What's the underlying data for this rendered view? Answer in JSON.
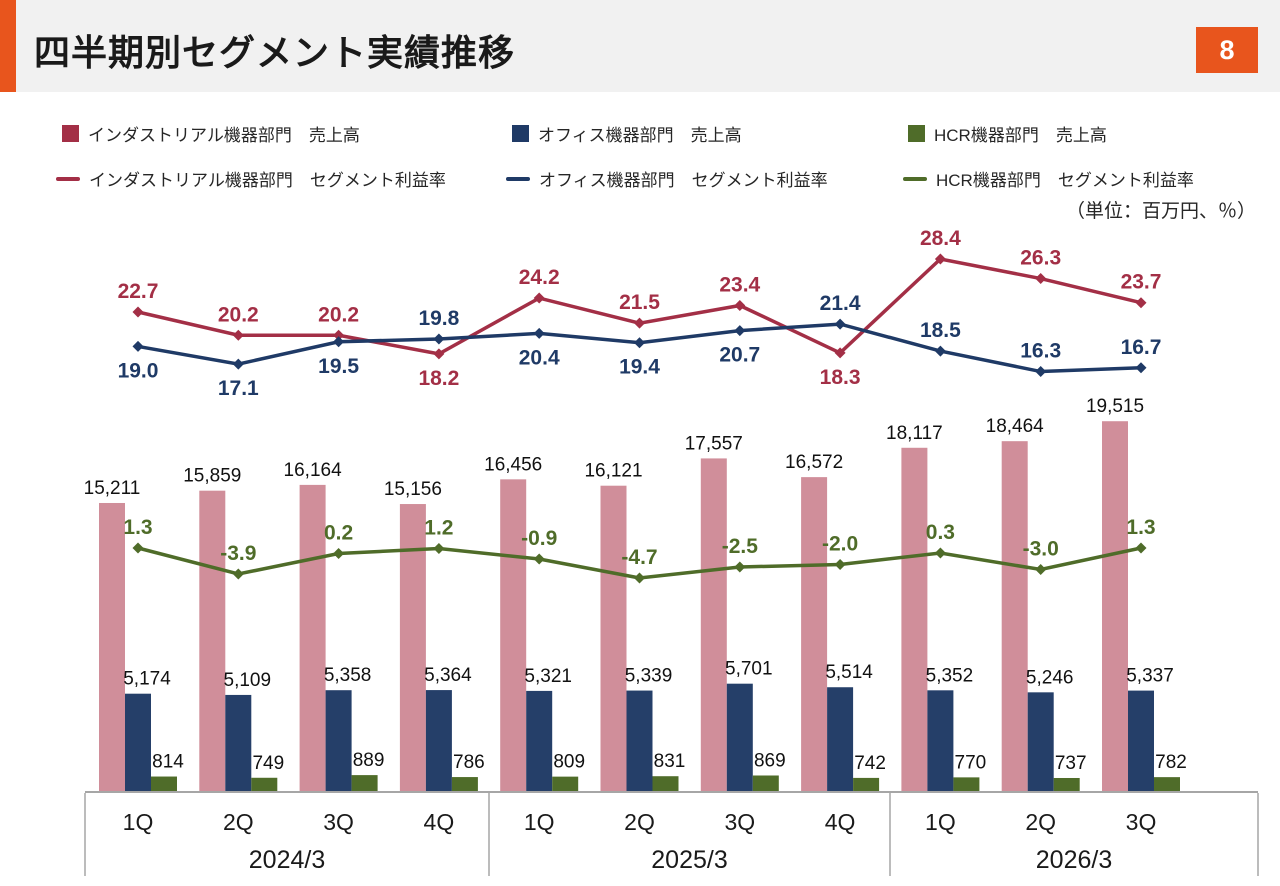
{
  "page": {
    "title": "四半期別セグメント実績推移",
    "page_number": "8",
    "unit_note": "（単位：百万円、％）"
  },
  "colors": {
    "accent_orange": "#E8551D",
    "header_band": "#F1F1F1",
    "industrial": "#A32F46",
    "office": "#1F3A66",
    "hcr": "#4F6C29",
    "industrial_bar": "#D08E9A",
    "office_bar": "#253F69",
    "hcr_bar": "#4F6C29",
    "axis_gray": "#A6A6A6"
  },
  "legend": {
    "revenue": [
      {
        "label": "インダストリアル機器部門　売上高",
        "color": "#A32F46"
      },
      {
        "label": "オフィス機器部門　売上高",
        "color": "#1F3A66"
      },
      {
        "label": "HCR機器部門　売上高",
        "color": "#4F6C29"
      }
    ],
    "margin": [
      {
        "label": "インダストリアル機器部門　セグメント利益率",
        "color": "#A32F46"
      },
      {
        "label": "オフィス機器部門　セグメント利益率",
        "color": "#1F3A66"
      },
      {
        "label": "HCR機器部門　セグメント利益率",
        "color": "#4F6C29"
      }
    ]
  },
  "chart_data": {
    "type": "combo",
    "title": "四半期別セグメント実績推移",
    "unit": "百万円、％",
    "legend_position": "top",
    "grid": false,
    "categories": [
      "1Q",
      "2Q",
      "3Q",
      "4Q",
      "1Q",
      "2Q",
      "3Q",
      "4Q",
      "1Q",
      "2Q",
      "3Q"
    ],
    "year_groups": [
      {
        "label": "2024/3",
        "span": 4
      },
      {
        "label": "2025/3",
        "span": 4
      },
      {
        "label": "2026/3",
        "span": 3
      }
    ],
    "bar_series": [
      {
        "name": "インダストリアル機器部門 売上高",
        "color": "#D08E9A",
        "values": [
          15211,
          15859,
          16164,
          15156,
          16456,
          16121,
          17557,
          16572,
          18117,
          18464,
          19515
        ]
      },
      {
        "name": "オフィス機器部門 売上高",
        "color": "#253F69",
        "values": [
          5174,
          5109,
          5358,
          5364,
          5321,
          5339,
          5701,
          5514,
          5352,
          5246,
          5337
        ]
      },
      {
        "name": "HCR機器部門 売上高",
        "color": "#4F6C29",
        "values": [
          814,
          749,
          889,
          786,
          809,
          831,
          869,
          742,
          770,
          737,
          782
        ]
      }
    ],
    "line_series": [
      {
        "name": "インダストリアル機器部門 セグメント利益率",
        "color": "#A32F46",
        "values": [
          22.7,
          20.2,
          20.2,
          18.2,
          24.2,
          21.5,
          23.4,
          18.3,
          28.4,
          26.3,
          23.7
        ],
        "label_pos": [
          "above",
          "above",
          "above",
          "below",
          "above",
          "above",
          "above",
          "below",
          "above",
          "above",
          "above"
        ]
      },
      {
        "name": "オフィス機器部門 セグメント利益率",
        "color": "#1F3A66",
        "values": [
          19.0,
          17.1,
          19.5,
          19.8,
          20.4,
          19.4,
          20.7,
          21.4,
          18.5,
          16.3,
          16.7
        ],
        "label_pos": [
          "below",
          "below",
          "below",
          "above",
          "below",
          "below",
          "below",
          "above",
          "above",
          "above",
          "above"
        ]
      },
      {
        "name": "HCR機器部門 セグメント利益率",
        "color": "#4F6C29",
        "values": [
          1.3,
          -3.9,
          0.2,
          1.2,
          -0.9,
          -4.7,
          -2.5,
          -2.0,
          0.3,
          -3.0,
          1.3
        ],
        "label_pos": [
          "above",
          "above",
          "above",
          "above",
          "above",
          "above",
          "above",
          "above",
          "above",
          "above",
          "above"
        ]
      }
    ]
  }
}
